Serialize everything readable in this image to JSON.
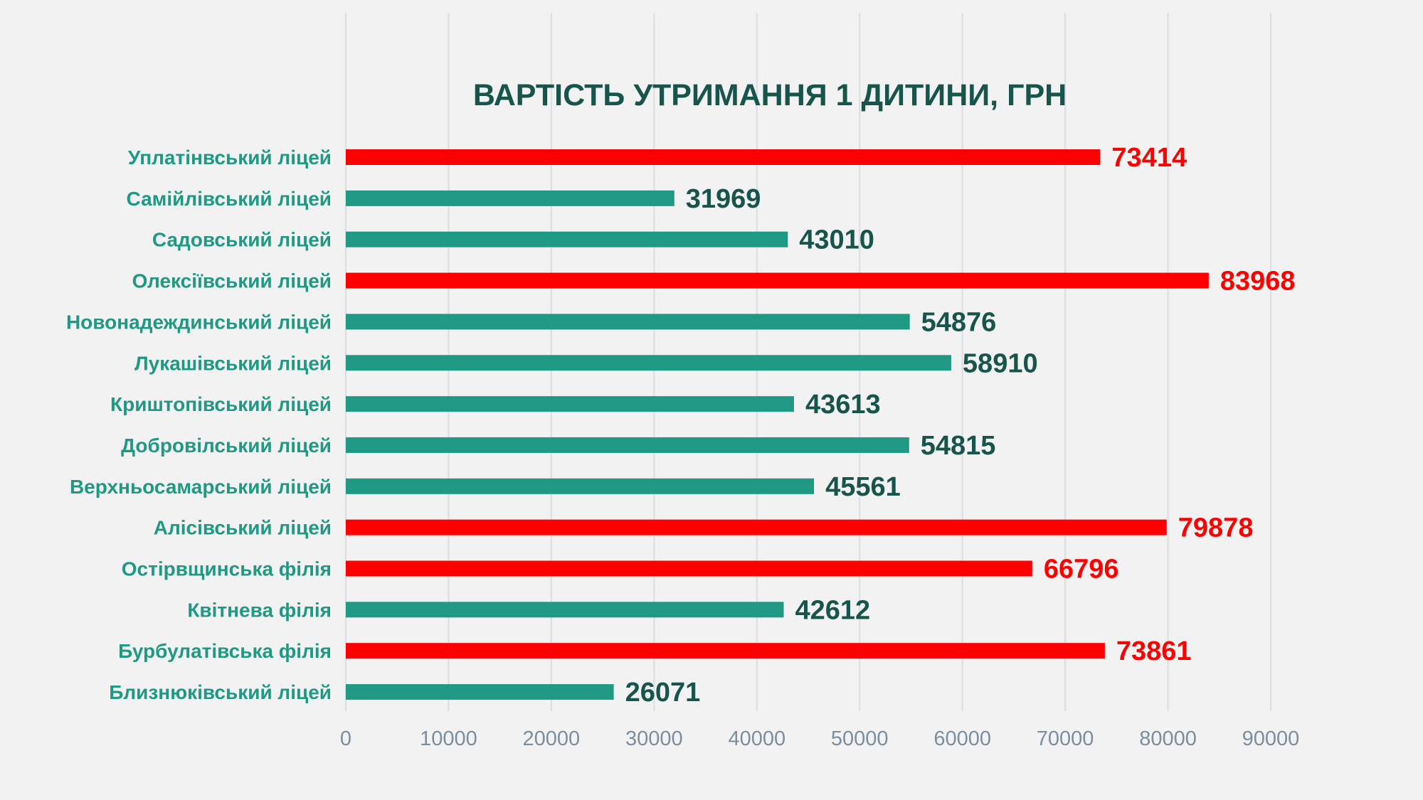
{
  "chart_data": {
    "type": "bar",
    "orientation": "horizontal",
    "title": "ВАРТІСТЬ УТРИМАННЯ 1 ДИТИНИ, ГРН",
    "xlabel": "",
    "ylabel": "",
    "xlim": [
      0,
      90000
    ],
    "x_ticks": [
      "0",
      "10000",
      "20000",
      "30000",
      "40000",
      "50000",
      "60000",
      "70000",
      "80000",
      "90000"
    ],
    "x_tick_values": [
      0,
      10000,
      20000,
      30000,
      40000,
      50000,
      60000,
      70000,
      80000,
      90000
    ],
    "grid": true,
    "legend": "none",
    "colors": {
      "normal_bar": "#1f9983",
      "highlight_bar": "#ff0000",
      "normal_label": "#17544b",
      "highlight_label": "#ff0000"
    },
    "categories": [
      "Уплатінвський ліцей",
      "Самійлівський ліцей",
      "Садовський ліцей",
      "Олексіївський ліцей",
      "Новонадеждинський ліцей",
      "Лукашівський ліцей",
      "Криштопівський ліцей",
      "Добровілський ліцей",
      "Верхньосамарський ліцей",
      "Алісівський ліцей",
      "Остірвщинська філія",
      "Квітнева філія",
      "Бурбулатівська філія",
      "Близнюківський ліцей"
    ],
    "values": [
      73414,
      31969,
      43010,
      83968,
      54876,
      58910,
      43613,
      54815,
      45561,
      79878,
      66796,
      42612,
      73861,
      26071
    ],
    "data_labels": [
      "73414",
      "31969",
      "43010",
      "83968",
      "54876",
      "58910",
      "43613",
      "54815",
      "45561",
      "79878",
      "66796",
      "42612",
      "73861",
      "26071"
    ],
    "highlighted": [
      true,
      false,
      false,
      true,
      false,
      false,
      false,
      false,
      false,
      true,
      true,
      false,
      true,
      false
    ]
  }
}
